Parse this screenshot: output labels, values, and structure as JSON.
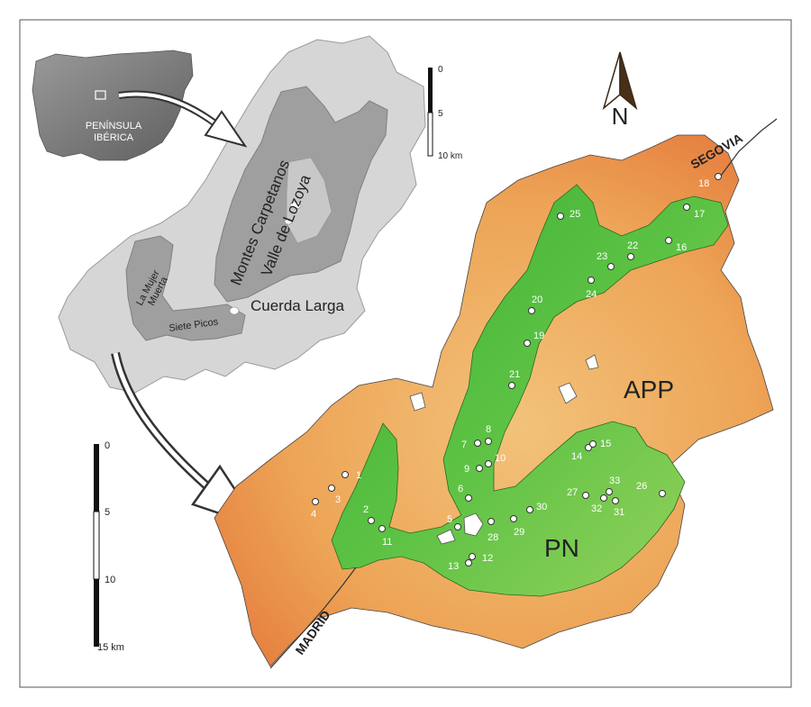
{
  "inset": {
    "label_line1": "PENÍNSULA",
    "label_line2": "IBÉRICA"
  },
  "region_labels": {
    "montes": "Montes Carpetanos",
    "valle": "Valle de Lozoya",
    "cuerda": "Cuerda Larga",
    "mujer_line1": "La Mujer",
    "mujer_line2": "Muerta",
    "siete": "Siete Picos"
  },
  "scale_small": {
    "top": "0",
    "mid": "5",
    "bottom": "10 km"
  },
  "scale_large": {
    "top": "0",
    "mid1": "5",
    "mid2": "10",
    "bottom": "15 km"
  },
  "north": {
    "label": "N"
  },
  "zones": {
    "app": "APP",
    "pn": "PN"
  },
  "roads": {
    "segovia": "SEGOVIA",
    "madrid": "MADRID"
  },
  "sites": [
    "1",
    "2",
    "3",
    "4",
    "5",
    "6",
    "7",
    "8",
    "9",
    "10",
    "11",
    "12",
    "13",
    "14",
    "15",
    "16",
    "17",
    "18",
    "19",
    "20",
    "21",
    "22",
    "23",
    "24",
    "25",
    "26",
    "27",
    "28",
    "29",
    "30",
    "31",
    "32",
    "33"
  ],
  "colors": {
    "outer_zone": "#f0b56a",
    "park_zone": "#3fb53a",
    "park_highlight": "#7ad35a",
    "grey_light": "#d4d4d4",
    "grey_mid": "#9e9e9e",
    "grey_dark": "#7a7a7a"
  }
}
